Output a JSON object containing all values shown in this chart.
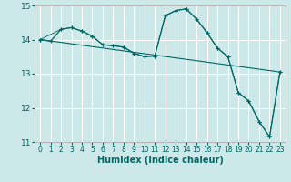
{
  "xlabel": "Humidex (Indice chaleur)",
  "bg_color": "#cce8e8",
  "grid_color": "#ffffff",
  "line_color": "#006666",
  "xlim": [
    -0.5,
    23.5
  ],
  "ylim": [
    11,
    15
  ],
  "yticks": [
    11,
    12,
    13,
    14,
    15
  ],
  "xticks": [
    0,
    1,
    2,
    3,
    4,
    5,
    6,
    7,
    8,
    9,
    10,
    11,
    12,
    13,
    14,
    15,
    16,
    17,
    18,
    19,
    20,
    21,
    22,
    23
  ],
  "series1_x": [
    0,
    1,
    2,
    3,
    4,
    5,
    6,
    7,
    8,
    9,
    10,
    11,
    12,
    13,
    14,
    15,
    16,
    17,
    18,
    19,
    20,
    21,
    22,
    23
  ],
  "series1_y": [
    14.0,
    13.95,
    14.3,
    14.35,
    14.25,
    14.1,
    13.85,
    13.82,
    13.78,
    13.6,
    13.5,
    13.52,
    14.7,
    14.85,
    14.9,
    14.6,
    14.2,
    13.75,
    13.5,
    12.45,
    12.2,
    11.6,
    11.15,
    13.05
  ],
  "series2_x": [
    0,
    2,
    3,
    4,
    5,
    6,
    7,
    8,
    9,
    10,
    11,
    12,
    13,
    14,
    15,
    16,
    17,
    18,
    19,
    20,
    21,
    22,
    23
  ],
  "series2_y": [
    14.0,
    14.3,
    14.35,
    14.25,
    14.1,
    13.85,
    13.82,
    13.78,
    13.6,
    13.5,
    13.52,
    14.7,
    14.85,
    14.9,
    14.6,
    14.2,
    13.75,
    13.5,
    12.45,
    12.2,
    11.6,
    11.15,
    13.05
  ],
  "trend_x": [
    0,
    23
  ],
  "trend_y": [
    14.0,
    13.05
  ]
}
